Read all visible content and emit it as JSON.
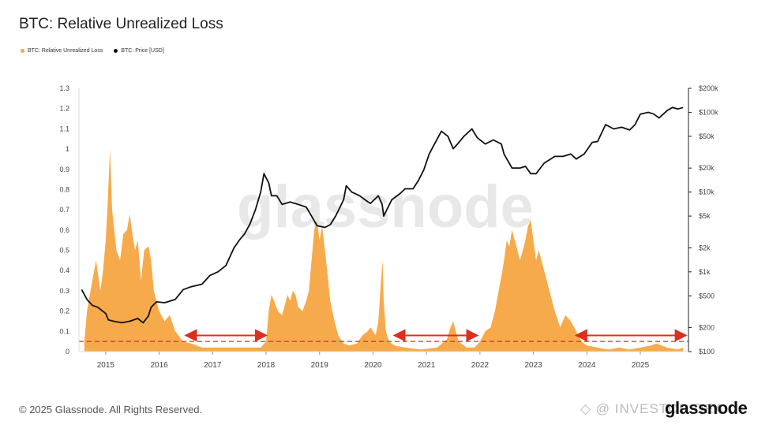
{
  "header": {
    "title": "BTC: Relative Unrealized Loss"
  },
  "footer": {
    "copyright": "© 2025 Glassnode. All Rights Reserved.",
    "brand": "glassnode"
  },
  "watermarks": {
    "center": "glassnode",
    "corner": "◇ @ INVESTOR DEA"
  },
  "colors": {
    "loss": "#f7a541",
    "price": "#111111",
    "arrow": "#d93020",
    "threshold": "#d93020"
  },
  "chart_data": {
    "type": "area",
    "title": "BTC: Relative Unrealized Loss",
    "legend_placement": "top-left",
    "grid": false,
    "series": [
      {
        "name": "BTC: Relative Unrealized Loss",
        "axis": "left",
        "type": "area",
        "x": [
          2014.6,
          2014.65,
          2014.75,
          2014.82,
          2014.9,
          2014.95,
          2015.0,
          2015.04,
          2015.08,
          2015.12,
          2015.2,
          2015.27,
          2015.33,
          2015.4,
          2015.45,
          2015.5,
          2015.55,
          2015.6,
          2015.66,
          2015.72,
          2015.8,
          2015.85,
          2015.9,
          2016.0,
          2016.1,
          2016.2,
          2016.3,
          2016.45,
          2016.6,
          2016.8,
          2017.0,
          2017.3,
          2017.6,
          2017.9,
          2018.0,
          2018.05,
          2018.1,
          2018.15,
          2018.22,
          2018.3,
          2018.4,
          2018.45,
          2018.5,
          2018.55,
          2018.6,
          2018.68,
          2018.75,
          2018.8,
          2018.85,
          2018.9,
          2018.95,
          2019.0,
          2019.05,
          2019.1,
          2019.15,
          2019.2,
          2019.28,
          2019.35,
          2019.45,
          2019.55,
          2019.7,
          2019.8,
          2019.9,
          2019.95,
          2020.0,
          2020.05,
          2020.1,
          2020.15,
          2020.18,
          2020.2,
          2020.24,
          2020.3,
          2020.4,
          2020.6,
          2020.9,
          2021.2,
          2021.38,
          2021.45,
          2021.5,
          2021.55,
          2021.6,
          2021.75,
          2021.9,
          2022.0,
          2022.1,
          2022.2,
          2022.28,
          2022.35,
          2022.42,
          2022.45,
          2022.5,
          2022.55,
          2022.6,
          2022.65,
          2022.7,
          2022.75,
          2022.8,
          2022.85,
          2022.9,
          2022.95,
          2023.0,
          2023.05,
          2023.1,
          2023.2,
          2023.3,
          2023.4,
          2023.5,
          2023.6,
          2023.7,
          2023.8,
          2023.9,
          2024.0,
          2024.2,
          2024.4,
          2024.6,
          2024.8,
          2025.0,
          2025.2,
          2025.3,
          2025.5,
          2025.7,
          2025.8
        ],
        "y": [
          0.05,
          0.2,
          0.35,
          0.45,
          0.3,
          0.4,
          0.55,
          0.75,
          1.0,
          0.7,
          0.5,
          0.45,
          0.58,
          0.6,
          0.68,
          0.58,
          0.5,
          0.55,
          0.35,
          0.5,
          0.52,
          0.45,
          0.3,
          0.2,
          0.15,
          0.18,
          0.1,
          0.05,
          0.04,
          0.02,
          0.02,
          0.02,
          0.02,
          0.02,
          0.05,
          0.2,
          0.28,
          0.25,
          0.2,
          0.18,
          0.28,
          0.25,
          0.3,
          0.28,
          0.22,
          0.2,
          0.25,
          0.3,
          0.45,
          0.6,
          0.65,
          0.55,
          0.62,
          0.5,
          0.38,
          0.25,
          0.15,
          0.08,
          0.04,
          0.03,
          0.04,
          0.08,
          0.1,
          0.12,
          0.1,
          0.08,
          0.15,
          0.35,
          0.45,
          0.25,
          0.1,
          0.05,
          0.03,
          0.02,
          0.01,
          0.02,
          0.06,
          0.12,
          0.15,
          0.1,
          0.05,
          0.02,
          0.02,
          0.05,
          0.1,
          0.12,
          0.2,
          0.3,
          0.4,
          0.45,
          0.55,
          0.52,
          0.6,
          0.55,
          0.5,
          0.45,
          0.5,
          0.55,
          0.62,
          0.65,
          0.55,
          0.45,
          0.5,
          0.4,
          0.3,
          0.2,
          0.12,
          0.18,
          0.15,
          0.1,
          0.05,
          0.03,
          0.02,
          0.01,
          0.02,
          0.01,
          0.02,
          0.03,
          0.04,
          0.02,
          0.01,
          0.02
        ]
      },
      {
        "name": "BTC: Price [USD]",
        "axis": "right",
        "type": "line",
        "x": [
          2014.55,
          2014.65,
          2014.75,
          2014.85,
          2015.0,
          2015.05,
          2015.15,
          2015.3,
          2015.45,
          2015.6,
          2015.7,
          2015.8,
          2015.85,
          2015.95,
          2016.1,
          2016.3,
          2016.45,
          2016.6,
          2016.8,
          2016.95,
          2017.1,
          2017.25,
          2017.4,
          2017.5,
          2017.6,
          2017.7,
          2017.8,
          2017.9,
          2017.96,
          2018.05,
          2018.1,
          2018.2,
          2018.3,
          2018.45,
          2018.6,
          2018.75,
          2018.85,
          2018.95,
          2019.1,
          2019.2,
          2019.3,
          2019.45,
          2019.5,
          2019.6,
          2019.75,
          2019.85,
          2019.95,
          2020.1,
          2020.17,
          2020.2,
          2020.35,
          2020.5,
          2020.6,
          2020.75,
          2020.85,
          2020.95,
          2021.05,
          2021.15,
          2021.28,
          2021.4,
          2021.5,
          2021.58,
          2021.7,
          2021.85,
          2021.95,
          2022.1,
          2022.25,
          2022.4,
          2022.45,
          2022.6,
          2022.75,
          2022.85,
          2022.95,
          2023.05,
          2023.2,
          2023.4,
          2023.55,
          2023.7,
          2023.8,
          2023.95,
          2024.1,
          2024.2,
          2024.35,
          2024.5,
          2024.65,
          2024.8,
          2024.9,
          2025.0,
          2025.15,
          2025.25,
          2025.35,
          2025.5,
          2025.6,
          2025.7,
          2025.8
        ],
        "y": [
          600,
          450,
          380,
          360,
          300,
          250,
          240,
          230,
          240,
          260,
          230,
          280,
          360,
          420,
          410,
          450,
          600,
          650,
          700,
          900,
          1000,
          1200,
          2000,
          2500,
          3000,
          4000,
          6000,
          10000,
          17000,
          13000,
          9000,
          9000,
          7000,
          7500,
          7000,
          6500,
          5000,
          3800,
          3600,
          3900,
          5000,
          8000,
          12000,
          10000,
          9000,
          8000,
          7200,
          9000,
          7000,
          5000,
          8000,
          9500,
          11000,
          11000,
          14000,
          19000,
          30000,
          40000,
          58000,
          50000,
          35000,
          40000,
          50000,
          62000,
          48000,
          40000,
          45000,
          40000,
          30000,
          20000,
          20000,
          21000,
          17000,
          17000,
          23000,
          28000,
          28000,
          30000,
          26000,
          30000,
          42000,
          43000,
          70000,
          62000,
          65000,
          60000,
          70000,
          95000,
          100000,
          95000,
          85000,
          105000,
          115000,
          110000,
          115000
        ]
      }
    ],
    "y_left_ticks": [
      "1.3",
      "1.2",
      "1.1",
      "1",
      "0.9",
      "0.8",
      "0.7",
      "0.6",
      "0.5",
      "0.4",
      "0.3",
      "0.2",
      "0.1",
      "0"
    ],
    "ylim_left": [
      0,
      1.3
    ],
    "y_right_scale": "log",
    "ylim_right": [
      100,
      200000
    ],
    "y_right_ticks": [
      {
        "value": 200000,
        "label": "$200k"
      },
      {
        "value": 100000,
        "label": "$100k"
      },
      {
        "value": 50000,
        "label": "$50k"
      },
      {
        "value": 20000,
        "label": "$20k"
      },
      {
        "value": 10000,
        "label": "$10k"
      },
      {
        "value": 5000,
        "label": "$5k"
      },
      {
        "value": 2000,
        "label": "$2k"
      },
      {
        "value": 1000,
        "label": "$1k"
      },
      {
        "value": 500,
        "label": "$500"
      },
      {
        "value": 200,
        "label": "$200"
      },
      {
        "value": 100,
        "label": "$100"
      }
    ],
    "x_ticks": [
      "2015",
      "2016",
      "2017",
      "2018",
      "2019",
      "2020",
      "2021",
      "2022",
      "2023",
      "2024",
      "2025"
    ],
    "xlim": [
      2014.5,
      2025.9
    ],
    "annotations": {
      "threshold_line": {
        "y": 0.05,
        "style": "dashed"
      },
      "arrows": [
        {
          "from": 2016.5,
          "to": 2018.0,
          "y": 0.08
        },
        {
          "from": 2020.4,
          "to": 2021.95,
          "y": 0.08
        },
        {
          "from": 2023.8,
          "to": 2025.85,
          "y": 0.08
        }
      ]
    }
  }
}
